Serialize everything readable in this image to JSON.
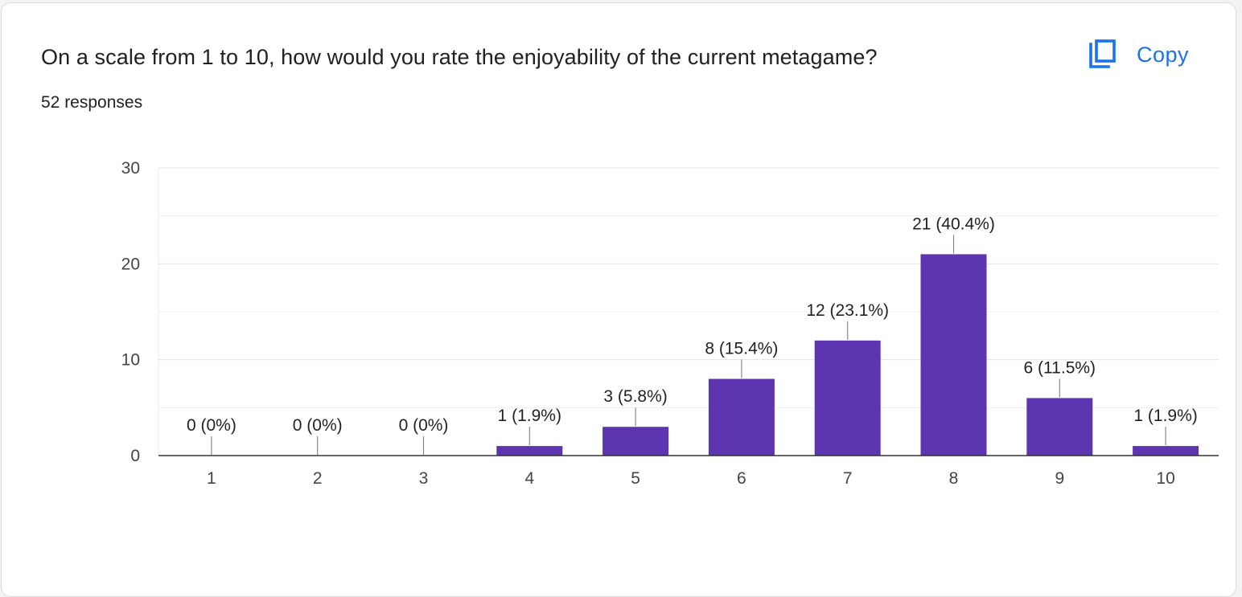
{
  "question": {
    "title": "On a scale from 1 to 10, how would you rate the enjoyability of the current metagame?",
    "responses": "52 responses"
  },
  "toolbar": {
    "copy_label": "Copy",
    "copy_icon": "copy-icon"
  },
  "colors": {
    "bar": "#5e35b1",
    "accent": "#1a73e8"
  },
  "chart_data": {
    "type": "bar",
    "categories": [
      "1",
      "2",
      "3",
      "4",
      "5",
      "6",
      "7",
      "8",
      "9",
      "10"
    ],
    "values": [
      0,
      0,
      0,
      1,
      3,
      8,
      12,
      21,
      6,
      1
    ],
    "data_labels": [
      "0 (0%)",
      "0 (0%)",
      "0 (0%)",
      "1 (1.9%)",
      "3 (5.8%)",
      "8 (15.4%)",
      "12 (23.1%)",
      "21 (40.4%)",
      "6 (11.5%)",
      "1 (1.9%)"
    ],
    "y_ticks": [
      0,
      10,
      20,
      30
    ],
    "ylim": [
      0,
      30
    ],
    "grid": true,
    "legend": "none",
    "title": "",
    "xlabel": "",
    "ylabel": ""
  }
}
